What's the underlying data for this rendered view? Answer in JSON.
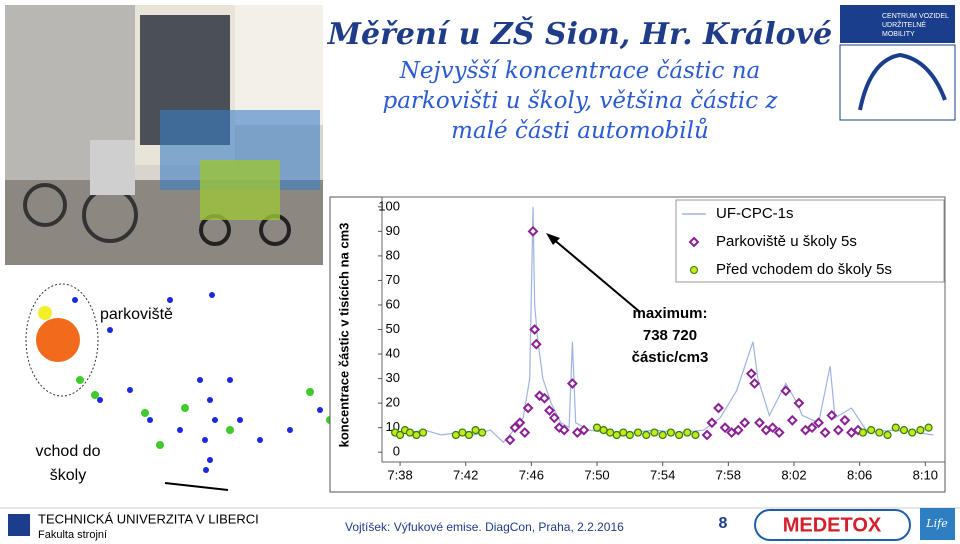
{
  "title": "Měření u ZŠ Sion, Hr. Králové",
  "subtitle": [
    "Nejvyšší koncentrace částic na",
    "parkovišti u školy, většina částic z",
    "malé části automobilů"
  ],
  "map_labels": {
    "parking": "parkoviště",
    "entrance": [
      "vchod do",
      "školy"
    ]
  },
  "logo_text": [
    "CENTRUM VOZIDEL",
    "UDRŽITELNÉ",
    "MOBILITY"
  ],
  "footer": {
    "university": "TECHNICKÁ UNIVERZITA V LIBERCI",
    "faculty": "Fakulta strojní",
    "citation": "Vojtíšek: Výfukové emise. DiagCon, Praha, 2.2.2016",
    "page": "8",
    "medetox": "MEDETOX",
    "life": "Life"
  },
  "chart_data": {
    "type": "line",
    "y_label": "koncentrace částic v tisících na cm3",
    "annotation": [
      "maximum:",
      "738 720",
      "částic/cm3"
    ],
    "xlim": [
      456.9,
      491.2
    ],
    "ylim": [
      -4,
      104
    ],
    "xticks": [
      {
        "value": 458,
        "label": "7:38"
      },
      {
        "value": 462,
        "label": "7:42"
      },
      {
        "value": 466,
        "label": "7:46"
      },
      {
        "value": 470,
        "label": "7:50"
      },
      {
        "value": 474,
        "label": "7:54"
      },
      {
        "value": 478,
        "label": "7:58"
      },
      {
        "value": 482,
        "label": "8:02"
      },
      {
        "value": 486,
        "label": "8:06"
      },
      {
        "value": 490,
        "label": "8:10"
      }
    ],
    "yticks": [
      0,
      10,
      20,
      30,
      40,
      50,
      60,
      70,
      80,
      90,
      100
    ],
    "legend": "top-right",
    "series": [
      {
        "name": "UF-CPC-1s",
        "color": "#9fb3e0",
        "style": "line",
        "x": [
          457.5,
          458.5,
          459.5,
          460.5,
          461.5,
          462.5,
          463.5,
          464.3,
          464.8,
          465.5,
          465.9,
          466.1,
          466.2,
          466.4,
          466.7,
          467.2,
          467.8,
          468.3,
          468.5,
          468.7,
          469.5,
          470.5,
          472,
          473.5,
          475,
          476.5,
          477.5,
          478.5,
          479.5,
          479.8,
          480.5,
          481.5,
          482.2,
          482.5,
          483.5,
          484.2,
          484.5,
          485.5,
          486.5,
          488,
          489.5,
          490.5
        ],
        "values": [
          7,
          8,
          9,
          7,
          8,
          7,
          9,
          4,
          8,
          14,
          30,
          100,
          60,
          45,
          30,
          20,
          12,
          10,
          45,
          12,
          9,
          8,
          8,
          9,
          8,
          9,
          14,
          25,
          45,
          30,
          15,
          28,
          20,
          15,
          12,
          35,
          14,
          18,
          8,
          9,
          8,
          7
        ]
      },
      {
        "name": "Parkoviště u školy 5s",
        "color": "#8a2094",
        "style": "diamond",
        "x": [
          464.7,
          465,
          465.3,
          465.6,
          465.8,
          466.1,
          466.2,
          466.3,
          466.5,
          466.8,
          467.1,
          467.4,
          467.7,
          468,
          468.5,
          468.8,
          469.2,
          476.7,
          477,
          477.4,
          477.8,
          478.2,
          478.6,
          479,
          479.4,
          479.6,
          479.9,
          480.3,
          480.7,
          481.1,
          481.5,
          481.9,
          482.3,
          482.7,
          483.1,
          483.5,
          483.9,
          484.3,
          484.7,
          485.1,
          485.5,
          485.9
        ],
        "values": [
          5,
          10,
          12,
          8,
          18,
          90,
          50,
          44,
          23,
          22,
          17,
          14,
          10,
          9,
          28,
          8,
          9,
          7,
          12,
          18,
          10,
          8,
          9,
          12,
          32,
          28,
          12,
          9,
          10,
          8,
          25,
          13,
          20,
          9,
          10,
          12,
          8,
          15,
          9,
          13,
          8,
          9
        ]
      },
      {
        "name": "Před vchodem do školy 5s",
        "color": "#5fc21f",
        "style": "circle",
        "x": [
          457.7,
          458,
          458.3,
          458.6,
          459,
          459.4,
          461.4,
          461.8,
          462.2,
          462.6,
          463,
          470,
          470.4,
          470.8,
          471.2,
          471.6,
          472,
          472.5,
          473,
          473.5,
          474,
          474.5,
          475,
          475.5,
          476,
          486.2,
          486.7,
          487.2,
          487.7,
          488.2,
          488.7,
          489.2,
          489.7,
          490.2
        ],
        "values": [
          8,
          7,
          9,
          8,
          7,
          8,
          7,
          8,
          7,
          9,
          8,
          10,
          9,
          8,
          7,
          8,
          7,
          8,
          7,
          8,
          7,
          8,
          7,
          8,
          7,
          8,
          9,
          8,
          7,
          10,
          9,
          8,
          9,
          10
        ]
      }
    ]
  }
}
